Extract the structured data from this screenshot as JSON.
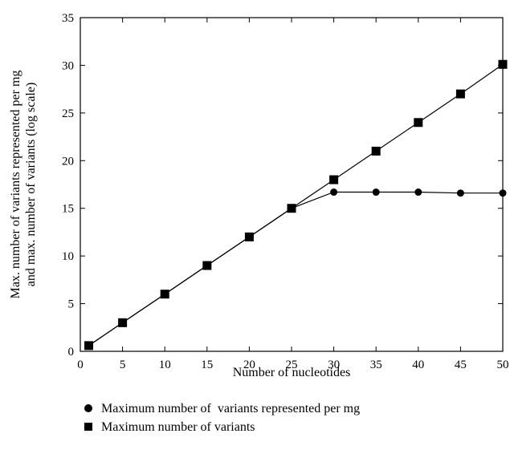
{
  "chart_data": {
    "type": "line",
    "xlabel": "Number of nucleotides",
    "ylabel_lines": [
      "Max. number of variants represented per mg",
      "and max. number of variants (log scale)"
    ],
    "xlim": [
      0,
      50
    ],
    "ylim": [
      0,
      35
    ],
    "xticks": [
      0,
      5,
      10,
      15,
      20,
      25,
      30,
      35,
      40,
      45,
      50
    ],
    "yticks": [
      0,
      5,
      10,
      15,
      20,
      25,
      30,
      35
    ],
    "grid": false,
    "legend_position": "bottom-left",
    "series": [
      {
        "name": "Maximum number of  variants represented per mg",
        "marker": "circle",
        "color": "#000000",
        "x": [
          1,
          5,
          10,
          15,
          20,
          25,
          30,
          35,
          40,
          45,
          50
        ],
        "y": [
          0.6,
          3.0,
          6.0,
          9.0,
          12.0,
          15.0,
          16.7,
          16.7,
          16.7,
          16.6,
          16.6
        ]
      },
      {
        "name": "Maximum number of variants",
        "marker": "square",
        "color": "#000000",
        "x": [
          1,
          5,
          10,
          15,
          20,
          25,
          30,
          35,
          40,
          45,
          50
        ],
        "y": [
          0.6,
          3.0,
          6.0,
          9.0,
          12.0,
          15.0,
          18.0,
          21.0,
          24.0,
          27.0,
          30.1
        ]
      }
    ]
  }
}
